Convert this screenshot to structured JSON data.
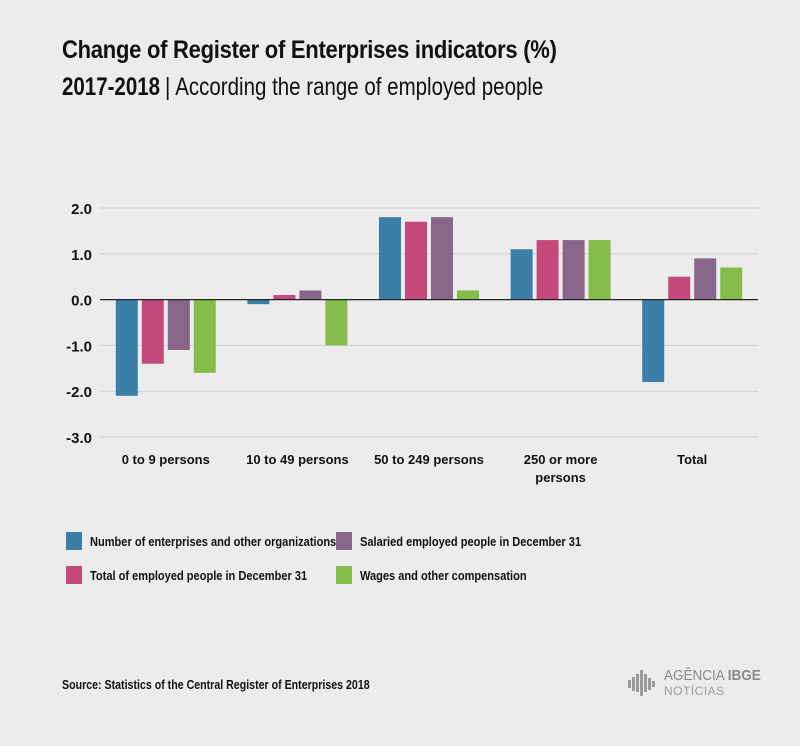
{
  "header": {
    "title": "Change of Register of Enterprises indicators (%)",
    "subtitle_years": "2017-2018",
    "subtitle_separator": "|",
    "subtitle_text": "According the range of employed people"
  },
  "colors": {
    "series": [
      "#3b7fa6",
      "#c3497a",
      "#87668a",
      "#85bc4a"
    ],
    "grid": "#d0d0d0",
    "axis": "#222222",
    "background": "#ececec"
  },
  "chart_data": {
    "type": "bar",
    "categories": [
      "0 to 9 persons",
      "10 to 49 persons",
      "50 to 249 persons",
      "250 or more persons",
      "Total"
    ],
    "category_lines": [
      [
        "0 to 9 persons"
      ],
      [
        "10 to 49 persons"
      ],
      [
        "50 to 249 persons"
      ],
      [
        "250 or more",
        "persons"
      ],
      [
        "Total"
      ]
    ],
    "series": [
      {
        "name": "Number of enterprises and other organizations",
        "values": [
          -2.1,
          -0.1,
          1.8,
          1.1,
          -1.8
        ]
      },
      {
        "name": "Total of employed people in December 31",
        "values": [
          -1.4,
          0.1,
          1.7,
          1.3,
          0.5
        ]
      },
      {
        "name": "Salaried employed people in December 31",
        "values": [
          -1.1,
          0.2,
          1.8,
          1.3,
          0.9
        ]
      },
      {
        "name": "Wages and other compensation",
        "values": [
          -1.6,
          -1.0,
          0.2,
          1.3,
          0.7
        ]
      }
    ],
    "ylim": [
      -3.0,
      2.0
    ],
    "yticks": [
      "2.0",
      "1.0",
      "0.0",
      "-1.0",
      "-2.0",
      "-3.0"
    ],
    "ytick_values": [
      2,
      1,
      0,
      -1,
      -2,
      -3
    ],
    "grid": true,
    "legend_position": "bottom"
  },
  "legend": {
    "items": [
      "Number of enterprises and other organizations",
      "Salaried employed people in December 31",
      "Total of employed people in December 31",
      "Wages and other compensation"
    ]
  },
  "footer": {
    "source": "Source: Statistics of the Central Register of Enterprises 2018",
    "logo_word1": "AGÊNCIA",
    "logo_word2": "IBGE",
    "logo_sub": "NOTÍCIAS"
  }
}
